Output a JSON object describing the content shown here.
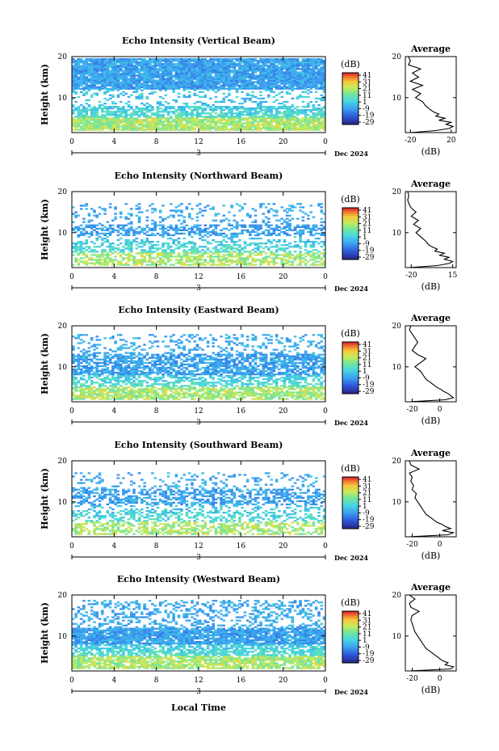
{
  "footer_label": "Local Time",
  "chart_data": [
    {
      "type": "heatmap",
      "title": "Echo Intensity (Vertical Beam)",
      "ylabel": "Height (km)",
      "x_ticks": [
        "0",
        "4",
        "8",
        "12",
        "16",
        "20",
        "0"
      ],
      "y_ticks": [
        "20",
        "10"
      ],
      "xlim": [
        0,
        24
      ],
      "ylim": [
        1.5,
        20
      ],
      "day_label": "3",
      "date_label": "Dec 2024",
      "colorbar_unit": "(dB)",
      "colorbar_ticks": [
        "41",
        "31",
        "21",
        "11",
        "1",
        "-9",
        "-19",
        "-29"
      ],
      "profile": {
        "title": "Average",
        "xlabel": "(dB)",
        "x_ticks": [
          "-20",
          "20"
        ],
        "xlim": [
          -25,
          25
        ],
        "y_ticks": [
          "20",
          "10"
        ],
        "height": [
          1.5,
          2,
          2.5,
          3,
          3.5,
          4,
          4.5,
          5,
          5.5,
          6,
          6.5,
          7,
          8,
          9,
          10,
          11,
          12,
          13,
          14,
          15,
          16,
          17,
          18,
          19,
          20
        ],
        "value": [
          -20,
          5,
          18,
          22,
          15,
          20,
          8,
          14,
          5,
          8,
          3,
          0,
          -5,
          -8,
          -15,
          -10,
          -18,
          -8,
          -20,
          -12,
          -18,
          -10,
          -22,
          -20,
          -22
        ]
      }
    },
    {
      "type": "heatmap",
      "title": "Echo Intensity (Northward Beam)",
      "ylabel": "Height (km)",
      "x_ticks": [
        "0",
        "4",
        "8",
        "12",
        "16",
        "20",
        "0"
      ],
      "y_ticks": [
        "20",
        "10"
      ],
      "xlim": [
        0,
        24
      ],
      "ylim": [
        1.5,
        20
      ],
      "day_label": "3",
      "date_label": "Dec 2024",
      "colorbar_unit": "(dB)",
      "colorbar_ticks": [
        "41",
        "31",
        "21",
        "11",
        "1",
        "-9",
        "-19",
        "-29"
      ],
      "profile": {
        "title": "Average",
        "xlabel": "(dB)",
        "x_ticks": [
          "-20",
          "15"
        ],
        "xlim": [
          -25,
          18
        ],
        "y_ticks": [
          "20",
          "10"
        ],
        "height": [
          1.5,
          2,
          2.5,
          3,
          3.5,
          4,
          4.5,
          5,
          5.5,
          6,
          6.5,
          7,
          8,
          9,
          10,
          11,
          12,
          13,
          14,
          15,
          16,
          17,
          18,
          19,
          20
        ],
        "value": [
          -22,
          2,
          12,
          15,
          8,
          12,
          4,
          8,
          0,
          2,
          -2,
          -5,
          -8,
          -12,
          -16,
          -12,
          -18,
          -14,
          -20,
          -16,
          -20,
          -22,
          -23,
          -22,
          -23
        ]
      }
    },
    {
      "type": "heatmap",
      "title": "Echo Intensity (Eastward Beam)",
      "ylabel": "Height (km)",
      "x_ticks": [
        "0",
        "4",
        "8",
        "12",
        "16",
        "20",
        "0"
      ],
      "y_ticks": [
        "20",
        "10"
      ],
      "xlim": [
        0,
        24
      ],
      "ylim": [
        1.5,
        20
      ],
      "day_label": "3",
      "date_label": "Dec 2024",
      "colorbar_unit": "(dB)",
      "colorbar_ticks": [
        "41",
        "31",
        "21",
        "11",
        "1",
        "-9",
        "-19",
        "-29"
      ],
      "profile": {
        "title": "Average",
        "xlabel": "(dB)",
        "x_ticks": [
          "-20",
          "0"
        ],
        "xlim": [
          -25,
          12
        ],
        "y_ticks": [
          "20",
          "10"
        ],
        "height": [
          1.5,
          2,
          2.5,
          3,
          3.5,
          4,
          4.5,
          5,
          5.5,
          6,
          6.5,
          7,
          8,
          9,
          10,
          11,
          12,
          13,
          14,
          15,
          16,
          17,
          18,
          19,
          20
        ],
        "value": [
          -22,
          4,
          10,
          8,
          6,
          3,
          1,
          -2,
          -4,
          -6,
          -8,
          -10,
          -12,
          -14,
          -18,
          -14,
          -10,
          -16,
          -20,
          -18,
          -16,
          -18,
          -20,
          -22,
          -21
        ]
      }
    },
    {
      "type": "heatmap",
      "title": "Echo Intensity (Southward Beam)",
      "ylabel": "Height (km)",
      "x_ticks": [
        "0",
        "4",
        "8",
        "12",
        "16",
        "20",
        "0"
      ],
      "y_ticks": [
        "20",
        "10"
      ],
      "xlim": [
        0,
        24
      ],
      "ylim": [
        1.5,
        20
      ],
      "day_label": "3",
      "date_label": "Dec 2024",
      "colorbar_unit": "(dB)",
      "colorbar_ticks": [
        "41",
        "31",
        "21",
        "11",
        "1",
        "-9",
        "-19",
        "-29"
      ],
      "profile": {
        "title": "Average",
        "xlabel": "(dB)",
        "x_ticks": [
          "-20",
          "0"
        ],
        "xlim": [
          -25,
          12
        ],
        "y_ticks": [
          "20",
          "10"
        ],
        "height": [
          1.5,
          2,
          2.5,
          3,
          3.5,
          4,
          4.5,
          5,
          5.5,
          6,
          6.5,
          7,
          8,
          9,
          10,
          11,
          12,
          13,
          14,
          15,
          16,
          17,
          18,
          19,
          20
        ],
        "value": [
          -22,
          6,
          10,
          2,
          8,
          4,
          2,
          -2,
          -4,
          -6,
          -8,
          -10,
          -12,
          -14,
          -16,
          -18,
          -17,
          -20,
          -19,
          -21,
          -20,
          -22,
          -15,
          -21,
          -22
        ]
      }
    },
    {
      "type": "heatmap",
      "title": "Echo Intensity (Westward Beam)",
      "ylabel": "Height (km)",
      "x_ticks": [
        "0",
        "4",
        "8",
        "12",
        "16",
        "20",
        "0"
      ],
      "y_ticks": [
        "20",
        "10"
      ],
      "xlim": [
        0,
        24
      ],
      "ylim": [
        1.5,
        20
      ],
      "day_label": "3",
      "date_label": "Dec 2024",
      "colorbar_unit": "(dB)",
      "colorbar_ticks": [
        "41",
        "31",
        "21",
        "11",
        "1",
        "-9",
        "-19",
        "-29"
      ],
      "profile": {
        "title": "Average",
        "xlabel": "(dB)",
        "x_ticks": [
          "-20",
          "0"
        ],
        "xlim": [
          -25,
          12
        ],
        "y_ticks": [
          "20",
          "10"
        ],
        "height": [
          1.5,
          2,
          2.5,
          3,
          3.5,
          4,
          4.5,
          5,
          5.5,
          6,
          6.5,
          7,
          8,
          9,
          10,
          11,
          12,
          13,
          14,
          15,
          16,
          17,
          18,
          19,
          20
        ],
        "value": [
          -22,
          8,
          10,
          4,
          6,
          2,
          0,
          -2,
          -4,
          -6,
          -8,
          -10,
          -12,
          -14,
          -16,
          -18,
          -19,
          -20,
          -21,
          -20,
          -15,
          -21,
          -22,
          -18,
          -22
        ]
      }
    }
  ]
}
